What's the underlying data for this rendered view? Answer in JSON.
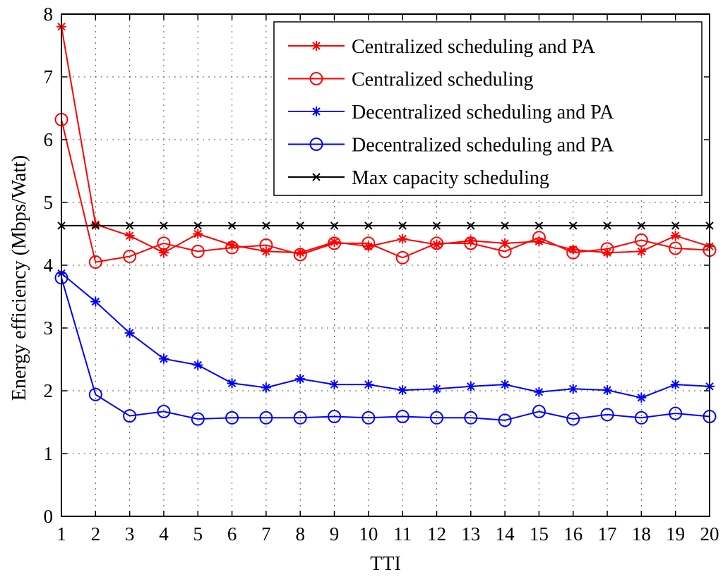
{
  "chart_data": {
    "type": "line",
    "title": "",
    "xlabel": "TTI",
    "ylabel": "Energy efficiency (Mbps/Watt)",
    "xlim": [
      1,
      20
    ],
    "ylim": [
      0,
      8
    ],
    "xticks": [
      1,
      2,
      3,
      4,
      5,
      6,
      7,
      8,
      9,
      10,
      11,
      12,
      13,
      14,
      15,
      16,
      17,
      18,
      19,
      20
    ],
    "yticks": [
      0,
      1,
      2,
      3,
      4,
      5,
      6,
      7,
      8
    ],
    "grid": true,
    "legend_position": "top-right",
    "x": [
      1,
      2,
      3,
      4,
      5,
      6,
      7,
      8,
      9,
      10,
      11,
      12,
      13,
      14,
      15,
      16,
      17,
      18,
      19,
      20
    ],
    "series": [
      {
        "name": "Centralized scheduling and PA",
        "color": "#ff0000",
        "marker": "star",
        "values": [
          7.8,
          4.65,
          4.47,
          4.2,
          4.5,
          4.32,
          4.22,
          4.2,
          4.37,
          4.3,
          4.42,
          4.33,
          4.39,
          4.35,
          4.38,
          4.25,
          4.2,
          4.22,
          4.47,
          4.3
        ]
      },
      {
        "name": "Centralized scheduling",
        "color": "#ff0000",
        "marker": "circle",
        "values": [
          6.32,
          4.05,
          4.14,
          4.35,
          4.22,
          4.28,
          4.32,
          4.17,
          4.35,
          4.35,
          4.12,
          4.35,
          4.35,
          4.22,
          4.44,
          4.2,
          4.26,
          4.4,
          4.27,
          4.24
        ]
      },
      {
        "name": "Decentralized scheduling and PA",
        "color": "#0000ff",
        "marker": "star",
        "values": [
          3.87,
          3.42,
          2.92,
          2.51,
          2.41,
          2.12,
          2.05,
          2.19,
          2.1,
          2.1,
          2.01,
          2.03,
          2.07,
          2.1,
          1.98,
          2.03,
          2.01,
          1.89,
          2.1,
          2.07
        ]
      },
      {
        "name": "Decentralized scheduling and PA",
        "color": "#0000ff",
        "marker": "circle",
        "values": [
          3.8,
          1.94,
          1.6,
          1.67,
          1.55,
          1.57,
          1.57,
          1.57,
          1.59,
          1.57,
          1.59,
          1.57,
          1.57,
          1.53,
          1.67,
          1.55,
          1.62,
          1.57,
          1.64,
          1.59
        ]
      },
      {
        "name": "Max capacity scheduling",
        "color": "#000000",
        "marker": "cross",
        "values": [
          4.63,
          4.63,
          4.63,
          4.63,
          4.63,
          4.63,
          4.63,
          4.63,
          4.63,
          4.63,
          4.63,
          4.63,
          4.63,
          4.63,
          4.63,
          4.63,
          4.63,
          4.63,
          4.63,
          4.63
        ]
      }
    ]
  }
}
